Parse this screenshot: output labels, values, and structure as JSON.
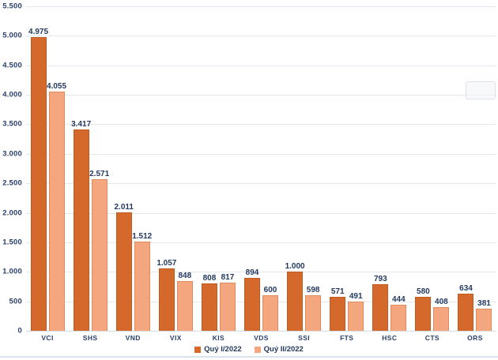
{
  "chart_data": {
    "type": "bar",
    "title": "",
    "xlabel": "",
    "ylabel": "",
    "categories": [
      "VCI",
      "SHS",
      "VND",
      "VIX",
      "KIS",
      "VDS",
      "SSI",
      "FTS",
      "HSC",
      "CTS",
      "ORS"
    ],
    "series": [
      {
        "name": "Quý I/2022",
        "color": "#d5692c",
        "border_color": "#c05a1e",
        "values": [
          4975,
          3417,
          2011,
          1057,
          808,
          894,
          1000,
          571,
          793,
          580,
          634
        ]
      },
      {
        "name": "Quý II/2022",
        "color": "#f4a67f",
        "border_color": "#e08b5e",
        "values": [
          4055,
          2571,
          1512,
          848,
          817,
          600,
          598,
          491,
          444,
          408,
          381
        ]
      }
    ],
    "ylim": [
      0,
      5500
    ],
    "ytick_step": 500,
    "ytick_labels": [
      "0",
      "500",
      "1.000",
      "1.500",
      "2.000",
      "2.500",
      "3.000",
      "3.500",
      "4.000",
      "4.500",
      "5.000",
      "5.500"
    ],
    "grid": true,
    "legend_position": "bottom",
    "number_format": "thousands-dot",
    "data_labels": true
  },
  "colors": {
    "label_text": "#24395f",
    "axis_text": "#2a3f6b",
    "gridline": "#e3e8ef",
    "axis_line": "#d6dde6",
    "background": "#ffffff",
    "bottom_strip": "#d9e4ef"
  }
}
